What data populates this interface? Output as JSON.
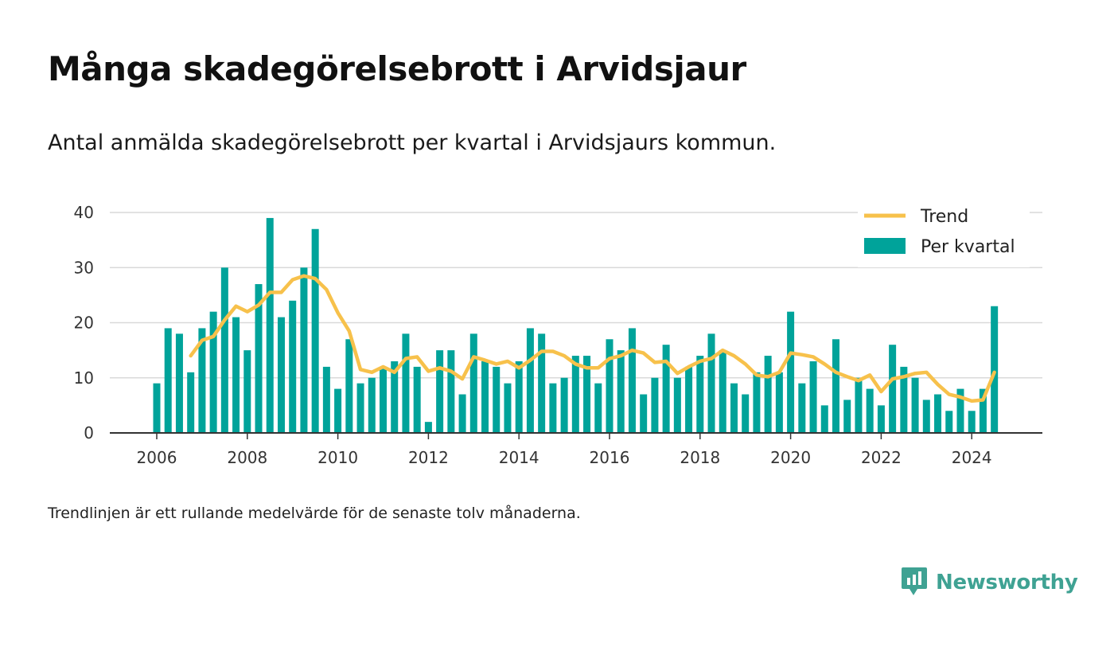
{
  "header": {
    "title": "Många skadegörelsebrott i Arvidsjaur",
    "subtitle": "Antal anmälda skadegörelsebrott per kvartal i Arvidsjaurs kommun."
  },
  "footer": {
    "note": "Trendlinjen är ett rullande medelvärde för de senaste tolv månaderna.",
    "brand": "Newsworthy"
  },
  "colors": {
    "bars": "#00a39a",
    "trend": "#f7c14b",
    "grid": "#d9d9d9",
    "axis": "#333333",
    "brand": "#3fa293"
  },
  "chart_data": {
    "type": "bar",
    "title": "Många skadegörelsebrott i Arvidsjaur",
    "subtitle": "Antal anmälda skadegörelsebrott per kvartal i Arvidsjaurs kommun.",
    "xlabel": "",
    "ylabel": "",
    "ylim": [
      0,
      40
    ],
    "yticks": [
      0,
      10,
      20,
      30,
      40
    ],
    "xticks": [
      "2006",
      "2008",
      "2010",
      "2012",
      "2014",
      "2016",
      "2018",
      "2020",
      "2022",
      "2024"
    ],
    "xlim": [
      2005,
      2025.5
    ],
    "grid": "horizontal",
    "legend_position": "top-right",
    "series": [
      {
        "name": "Per kvartal",
        "type": "bar",
        "x": [
          "2006-01-01",
          "2006-04-01",
          "2006-07-01",
          "2006-10-01",
          "2007-01-01",
          "2007-04-01",
          "2007-07-01",
          "2007-10-01",
          "2008-01-01",
          "2008-04-01",
          "2008-07-01",
          "2008-10-01",
          "2009-01-01",
          "2009-04-01",
          "2009-07-01",
          "2009-10-01",
          "2010-01-01",
          "2010-04-01",
          "2010-07-01",
          "2010-10-01",
          "2011-01-01",
          "2011-04-01",
          "2011-07-01",
          "2011-10-01",
          "2012-01-01",
          "2012-04-01",
          "2012-07-01",
          "2012-10-01",
          "2013-01-01",
          "2013-04-01",
          "2013-07-01",
          "2013-10-01",
          "2014-01-01",
          "2014-04-01",
          "2014-07-01",
          "2014-10-01",
          "2015-01-01",
          "2015-04-01",
          "2015-07-01",
          "2015-10-01",
          "2016-01-01",
          "2016-04-01",
          "2016-07-01",
          "2016-10-01",
          "2017-01-01",
          "2017-04-01",
          "2017-07-01",
          "2017-10-01",
          "2018-01-01",
          "2018-04-01",
          "2018-07-01",
          "2018-10-01",
          "2019-01-01",
          "2019-04-01",
          "2019-07-01",
          "2019-10-01",
          "2020-01-01",
          "2020-04-01",
          "2020-07-01",
          "2020-10-01",
          "2021-01-01",
          "2021-04-01",
          "2021-07-01",
          "2021-10-01",
          "2022-01-01",
          "2022-04-01",
          "2022-07-01",
          "2022-10-01",
          "2023-01-01",
          "2023-04-01",
          "2023-07-01",
          "2023-10-01",
          "2024-01-01",
          "2024-04-01",
          "2024-07-01"
        ],
        "values": [
          9,
          19,
          18,
          11,
          19,
          22,
          30,
          21,
          15,
          27,
          39,
          21,
          24,
          30,
          37,
          12,
          8,
          17,
          9,
          10,
          12,
          13,
          18,
          12,
          2,
          15,
          15,
          7,
          18,
          13,
          12,
          9,
          13,
          19,
          18,
          9,
          10,
          14,
          14,
          9,
          17,
          15,
          19,
          7,
          10,
          16,
          10,
          12,
          14,
          18,
          15,
          9,
          7,
          11,
          14,
          11,
          22,
          9,
          13,
          5,
          17,
          6,
          10,
          8,
          5,
          16,
          12,
          10,
          6,
          7,
          4,
          8,
          4,
          8,
          23
        ]
      },
      {
        "name": "Trend",
        "type": "line",
        "x": [
          "2006-10-01",
          "2007-01-01",
          "2007-04-01",
          "2007-07-01",
          "2007-10-01",
          "2008-01-01",
          "2008-04-01",
          "2008-07-01",
          "2008-10-01",
          "2009-01-01",
          "2009-04-01",
          "2009-07-01",
          "2009-10-01",
          "2010-01-01",
          "2010-04-01",
          "2010-07-01",
          "2010-10-01",
          "2011-01-01",
          "2011-04-01",
          "2011-07-01",
          "2011-10-01",
          "2012-01-01",
          "2012-04-01",
          "2012-07-01",
          "2012-10-01",
          "2013-01-01",
          "2013-04-01",
          "2013-07-01",
          "2013-10-01",
          "2014-01-01",
          "2014-04-01",
          "2014-07-01",
          "2014-10-01",
          "2015-01-01",
          "2015-04-01",
          "2015-07-01",
          "2015-10-01",
          "2016-01-01",
          "2016-04-01",
          "2016-07-01",
          "2016-10-01",
          "2017-01-01",
          "2017-04-01",
          "2017-07-01",
          "2017-10-01",
          "2018-01-01",
          "2018-04-01",
          "2018-07-01",
          "2018-10-01",
          "2019-01-01",
          "2019-04-01",
          "2019-07-01",
          "2019-10-01",
          "2020-01-01",
          "2020-04-01",
          "2020-07-01",
          "2020-10-01",
          "2021-01-01",
          "2021-04-01",
          "2021-07-01",
          "2021-10-01",
          "2022-01-01",
          "2022-04-01",
          "2022-07-01",
          "2022-10-01",
          "2023-01-01",
          "2023-04-01",
          "2023-07-01",
          "2023-10-01",
          "2024-01-01",
          "2024-04-01",
          "2024-07-01"
        ],
        "values": [
          14,
          16.8,
          17.5,
          20.5,
          23,
          22,
          23.2,
          25.5,
          25.5,
          27.8,
          28.5,
          28,
          26,
          21.8,
          18.5,
          11.5,
          11,
          12,
          11,
          13.5,
          13.8,
          11.2,
          11.8,
          11.2,
          9.8,
          13.8,
          13.2,
          12.5,
          13,
          11.8,
          13.2,
          14.8,
          14.8,
          14,
          12.5,
          11.8,
          11.8,
          13.5,
          14,
          15,
          14.5,
          12.8,
          13,
          10.8,
          12,
          13,
          13.5,
          15,
          14,
          12.5,
          10.5,
          10.2,
          11,
          14.5,
          14.2,
          13.8,
          12.5,
          11,
          10.2,
          9.5,
          10.5,
          7.5,
          9.8,
          10.2,
          10.8,
          11,
          8.8,
          7,
          6.5,
          5.8,
          6,
          11
        ]
      }
    ]
  }
}
